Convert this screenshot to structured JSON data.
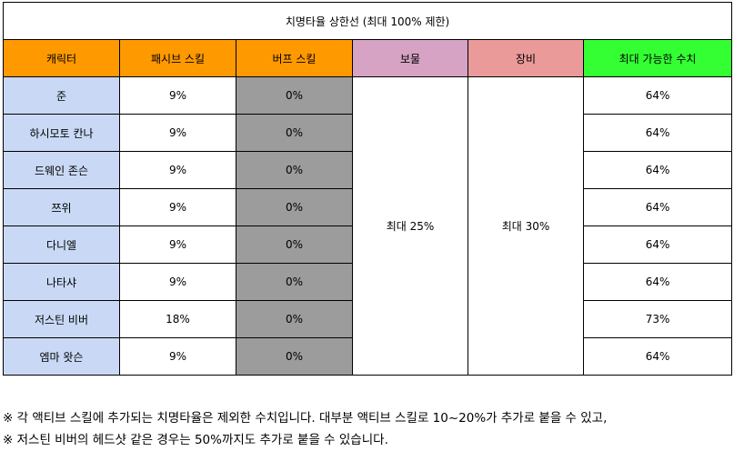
{
  "table": {
    "title": "치명타율 상한선 (최대 100% 제한)",
    "headers": {
      "name": "캐릭터",
      "passive": "패시브 스킬",
      "buff": "버프 스킬",
      "treasure": "보물",
      "equipment": "장비",
      "max": "최대 가능한 수치"
    },
    "treasure_value": "최대 25%",
    "equipment_value": "최대 30%",
    "rows": [
      {
        "name": "준",
        "passive": "9%",
        "buff": "0%",
        "max": "64%"
      },
      {
        "name": "하시모토 칸나",
        "passive": "9%",
        "buff": "0%",
        "max": "64%"
      },
      {
        "name": "드웨인 존슨",
        "passive": "9%",
        "buff": "0%",
        "max": "64%"
      },
      {
        "name": "쯔위",
        "passive": "9%",
        "buff": "0%",
        "max": "64%"
      },
      {
        "name": "다니엘",
        "passive": "9%",
        "buff": "0%",
        "max": "64%"
      },
      {
        "name": "나타샤",
        "passive": "9%",
        "buff": "0%",
        "max": "64%"
      },
      {
        "name": "저스틴 비버",
        "passive": "18%",
        "buff": "0%",
        "max": "73%"
      },
      {
        "name": "엠마 왓슨",
        "passive": "9%",
        "buff": "0%",
        "max": "64%"
      }
    ]
  },
  "notes": [
    "※ 각 액티브 스킬에 추가되는 치명타율은 제외한 수치입니다. 대부분 액티브 스킬로 10~20%가 추가로 붙을 수 있고,",
    "※ 저스틴 비버의 헤드샷 같은 경우는 50%까지도 추가로 붙을 수 있습니다."
  ]
}
